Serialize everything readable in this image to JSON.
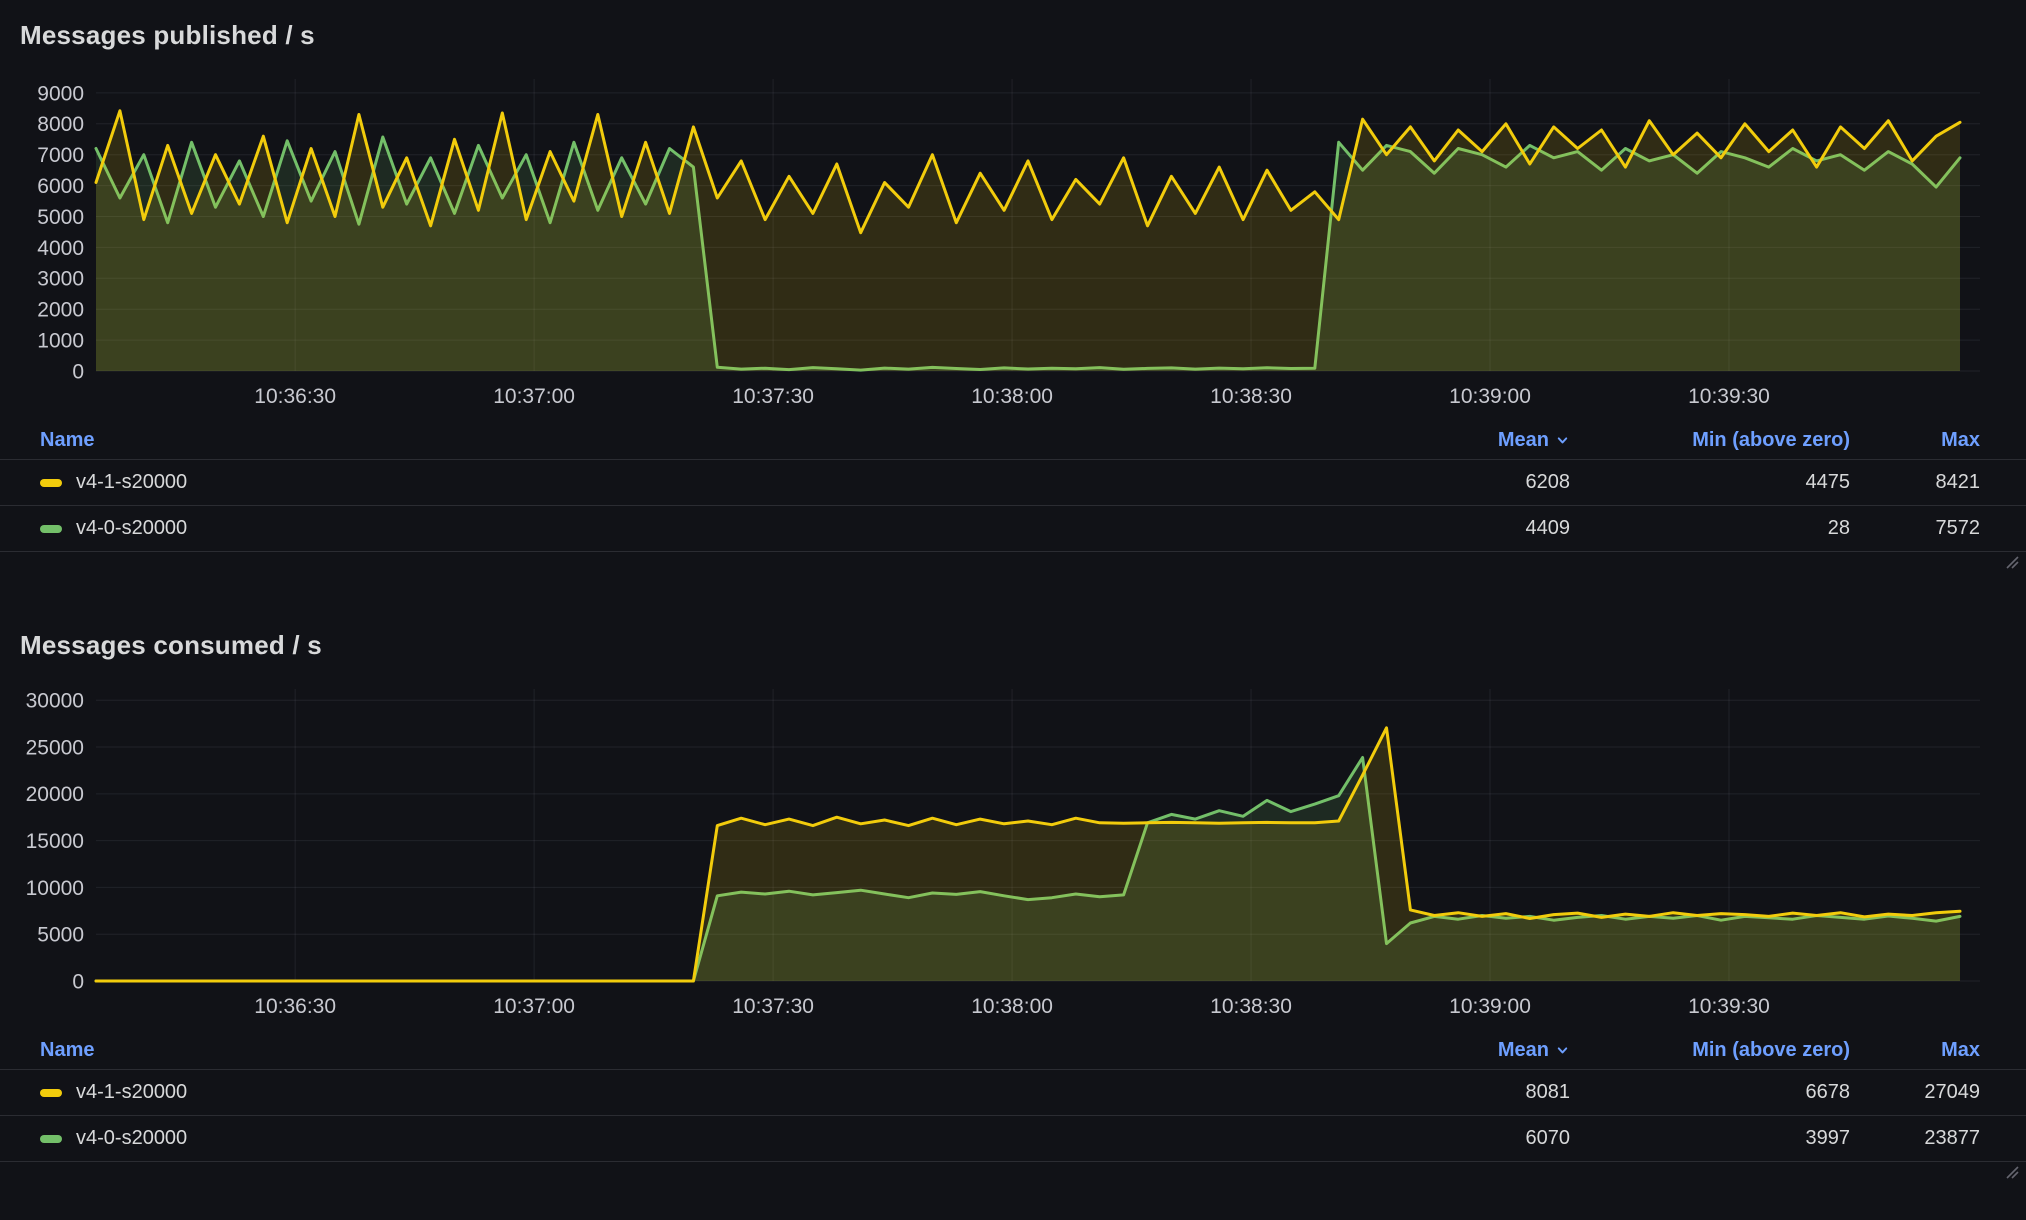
{
  "panels": [
    {
      "title": "Messages published / s",
      "legend": {
        "columns": {
          "name": "Name",
          "mean": "Mean",
          "min": "Min (above zero)",
          "max": "Max"
        },
        "rows": [
          {
            "name": "v4-1-s20000",
            "mean": "6208",
            "min": "4475",
            "max": "8421"
          },
          {
            "name": "v4-0-s20000",
            "mean": "4409",
            "min": "28",
            "max": "7572"
          }
        ]
      }
    },
    {
      "title": "Messages consumed / s",
      "legend": {
        "columns": {
          "name": "Name",
          "mean": "Mean",
          "min": "Min (above zero)",
          "max": "Max"
        },
        "rows": [
          {
            "name": "v4-1-s20000",
            "mean": "8081",
            "min": "6678",
            "max": "27049"
          },
          {
            "name": "v4-0-s20000",
            "mean": "6070",
            "min": "3997",
            "max": "23877"
          }
        ]
      }
    }
  ],
  "colors": {
    "background": "#111217",
    "grid": "rgba(204,204,220,0.09)",
    "axis_text": "#C8C9D0",
    "header_link": "#6E9FFF",
    "series_yellow": "#F2CC0C",
    "series_green": "#73BF69"
  },
  "chart_data": [
    {
      "type": "line",
      "title": "Messages published / s",
      "xlabel": "",
      "ylabel": "",
      "legend_position": "bottom-table",
      "grid": true,
      "fill_opacity": 0.14,
      "x_step_seconds": 3,
      "x_range_seconds": 234,
      "x_ticks": [
        {
          "t": 25,
          "label": "10:36:30"
        },
        {
          "t": 55,
          "label": "10:37:00"
        },
        {
          "t": 85,
          "label": "10:37:30"
        },
        {
          "t": 115,
          "label": "10:38:00"
        },
        {
          "t": 145,
          "label": "10:38:30"
        },
        {
          "t": 175,
          "label": "10:39:00"
        },
        {
          "t": 205,
          "label": "10:39:30"
        }
      ],
      "y_ticks": [
        0,
        1000,
        2000,
        3000,
        4000,
        5000,
        6000,
        7000,
        8000,
        9000
      ],
      "y_max": 9450,
      "series": [
        {
          "name": "v4-1-s20000",
          "color": "#F2CC0C",
          "mean": 6208,
          "min_above_zero": 4475,
          "max": 8421,
          "values": [
            6100,
            8421,
            4900,
            7300,
            5100,
            7000,
            5400,
            7600,
            4800,
            7200,
            5000,
            8300,
            5300,
            6900,
            4700,
            7500,
            5200,
            8350,
            4900,
            7100,
            5500,
            8300,
            5000,
            7400,
            5100,
            7900,
            5600,
            6800,
            4900,
            6300,
            5100,
            6700,
            4475,
            6100,
            5300,
            7000,
            4800,
            6400,
            5200,
            6800,
            4900,
            6200,
            5400,
            6900,
            4700,
            6300,
            5100,
            6600,
            4900,
            6500,
            5200,
            5800,
            4900,
            8150,
            7000,
            7900,
            6800,
            7800,
            7100,
            8000,
            6700,
            7900,
            7200,
            7800,
            6600,
            8100,
            7000,
            7700,
            6900,
            8000,
            7100,
            7800,
            6600,
            7900,
            7200,
            8100,
            6800,
            7600,
            8050
          ]
        },
        {
          "name": "v4-0-s20000",
          "color": "#73BF69",
          "mean": 4409,
          "min_above_zero": 28,
          "max": 7572,
          "values": [
            7200,
            5600,
            7000,
            4800,
            7400,
            5300,
            6800,
            5000,
            7450,
            5500,
            7100,
            4750,
            7572,
            5400,
            6900,
            5100,
            7300,
            5600,
            7000,
            4800,
            7400,
            5200,
            6900,
            5400,
            7200,
            6600,
            120,
            60,
            90,
            45,
            110,
            70,
            28,
            95,
            60,
            115,
            80,
            50,
            100,
            65,
            90,
            75,
            110,
            55,
            85,
            100,
            60,
            95,
            70,
            105,
            80,
            90,
            7400,
            6500,
            7300,
            7100,
            6400,
            7200,
            7000,
            6600,
            7300,
            6900,
            7100,
            6500,
            7200,
            6800,
            7000,
            6400,
            7100,
            6900,
            6600,
            7200,
            6800,
            7000,
            6500,
            7100,
            6700,
            5950,
            6900
          ]
        }
      ]
    },
    {
      "type": "line",
      "title": "Messages consumed / s",
      "xlabel": "",
      "ylabel": "",
      "legend_position": "bottom-table",
      "grid": true,
      "fill_opacity": 0.14,
      "x_step_seconds": 3,
      "x_range_seconds": 234,
      "x_ticks": [
        {
          "t": 25,
          "label": "10:36:30"
        },
        {
          "t": 55,
          "label": "10:37:00"
        },
        {
          "t": 85,
          "label": "10:37:30"
        },
        {
          "t": 115,
          "label": "10:38:00"
        },
        {
          "t": 145,
          "label": "10:38:30"
        },
        {
          "t": 175,
          "label": "10:39:00"
        },
        {
          "t": 205,
          "label": "10:39:30"
        }
      ],
      "y_ticks": [
        0,
        5000,
        10000,
        15000,
        20000,
        25000,
        30000
      ],
      "y_max": 31200,
      "series": [
        {
          "name": "v4-1-s20000",
          "color": "#F2CC0C",
          "mean": 8081,
          "min_above_zero": 6678,
          "max": 27049,
          "values": [
            0,
            0,
            0,
            0,
            0,
            0,
            0,
            0,
            0,
            0,
            0,
            0,
            0,
            0,
            0,
            0,
            0,
            0,
            0,
            0,
            0,
            0,
            0,
            0,
            0,
            0,
            16600,
            17400,
            16700,
            17300,
            16600,
            17500,
            16800,
            17200,
            16600,
            17400,
            16700,
            17300,
            16800,
            17100,
            16700,
            17400,
            16900,
            16850,
            16900,
            16950,
            16900,
            16850,
            16900,
            16950,
            16900,
            16900,
            17100,
            22000,
            27049,
            7600,
            7000,
            7300,
            6900,
            7200,
            6678,
            7100,
            7250,
            6800,
            7150,
            6900,
            7300,
            7000,
            7200,
            7100,
            6900,
            7250,
            7000,
            7300,
            6850,
            7150,
            7000,
            7300,
            7450
          ]
        },
        {
          "name": "v4-0-s20000",
          "color": "#73BF69",
          "mean": 6070,
          "min_above_zero": 3997,
          "max": 23877,
          "values": [
            0,
            0,
            0,
            0,
            0,
            0,
            0,
            0,
            0,
            0,
            0,
            0,
            0,
            0,
            0,
            0,
            0,
            0,
            0,
            0,
            0,
            0,
            0,
            0,
            0,
            0,
            9100,
            9500,
            9300,
            9600,
            9200,
            9450,
            9700,
            9300,
            8900,
            9400,
            9250,
            9550,
            9100,
            8700,
            8900,
            9300,
            9000,
            9200,
            16900,
            17800,
            17300,
            18200,
            17600,
            19300,
            18100,
            18900,
            19800,
            23877,
            3997,
            6200,
            6900,
            6600,
            7000,
            6700,
            6900,
            6500,
            6800,
            7000,
            6600,
            6900,
            6700,
            7000,
            6500,
            6900,
            6750,
            6600,
            7000,
            6800,
            6600,
            6950,
            6700,
            6400,
            6900
          ]
        }
      ]
    }
  ]
}
